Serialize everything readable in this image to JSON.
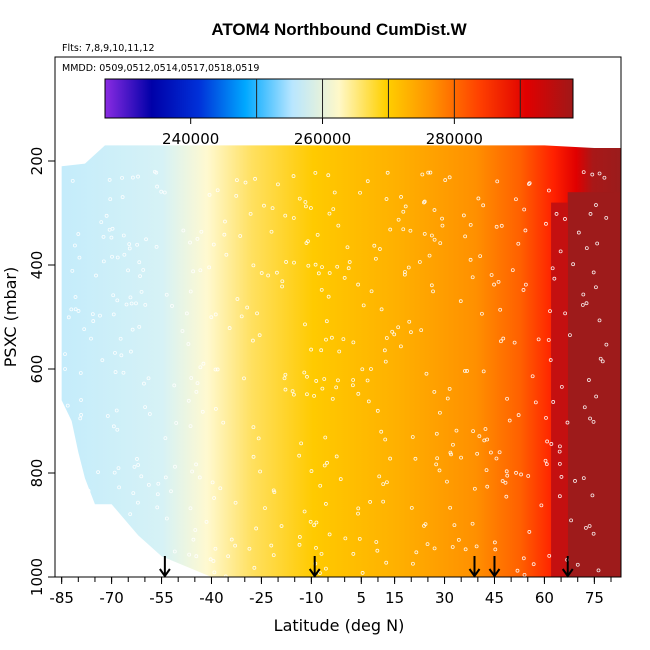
{
  "chart_data": {
    "type": "heatmap",
    "title": "ATOM4 Northbound CumDist.W",
    "subtitle_lines": [
      "Flts: 7,8,9,10,11,12",
      "MMDD: 0509,0512,0514,0517,0518,0519"
    ],
    "xlabel": "Latitude (deg N)",
    "ylabel": "PSXC (mbar)",
    "xlim": [
      -87,
      83
    ],
    "ylim": [
      1000,
      0
    ],
    "x_ticks_major": [
      -85,
      -70,
      -55,
      -40,
      -25,
      -10,
      5,
      15,
      30,
      45,
      60,
      75
    ],
    "x_tick_labels": [
      "-85",
      "-70",
      "-55",
      "-40",
      "-25",
      "-10",
      "5",
      "15",
      "30",
      "45",
      "60",
      "75"
    ],
    "x_ticks_minor_step": 5,
    "y_ticks": [
      200,
      400,
      600,
      800,
      1000
    ],
    "y_tick_labels": [
      "200",
      "400",
      "600",
      "800",
      "1000"
    ],
    "colorbar": {
      "min": 227000,
      "max": 298000,
      "ticks": [
        240000,
        260000,
        280000
      ],
      "tick_labels": [
        "240000",
        "260000",
        "280000"
      ],
      "dividers": [
        250000,
        260000,
        270000,
        280000,
        290000
      ],
      "colors": [
        "#8a2be2",
        "#0000a8",
        "#0030d8",
        "#00a8ff",
        "#b8e6ff",
        "#fff8c8",
        "#ffd000",
        "#ff9000",
        "#ff4000",
        "#e00000",
        "#a01818"
      ]
    },
    "surface_profile": {
      "lat": [
        -85,
        -82,
        -80,
        -78,
        -75,
        -70,
        -62,
        -55,
        -40,
        -20,
        0,
        20,
        40,
        60,
        75
      ],
      "bottom_p": [
        660,
        700,
        760,
        810,
        860,
        860,
        920,
        960,
        1000,
        1000,
        1000,
        1000,
        1000,
        1000,
        1000
      ]
    },
    "top_profile": {
      "lat": [
        -85,
        -78,
        -72,
        -55,
        -30,
        -10,
        10,
        30,
        60,
        75
      ],
      "top_p": [
        210,
        205,
        170,
        170,
        170,
        170,
        170,
        170,
        170,
        175
      ]
    },
    "flight_arrows_lat": [
      -54,
      -9,
      39,
      45,
      67
    ]
  }
}
